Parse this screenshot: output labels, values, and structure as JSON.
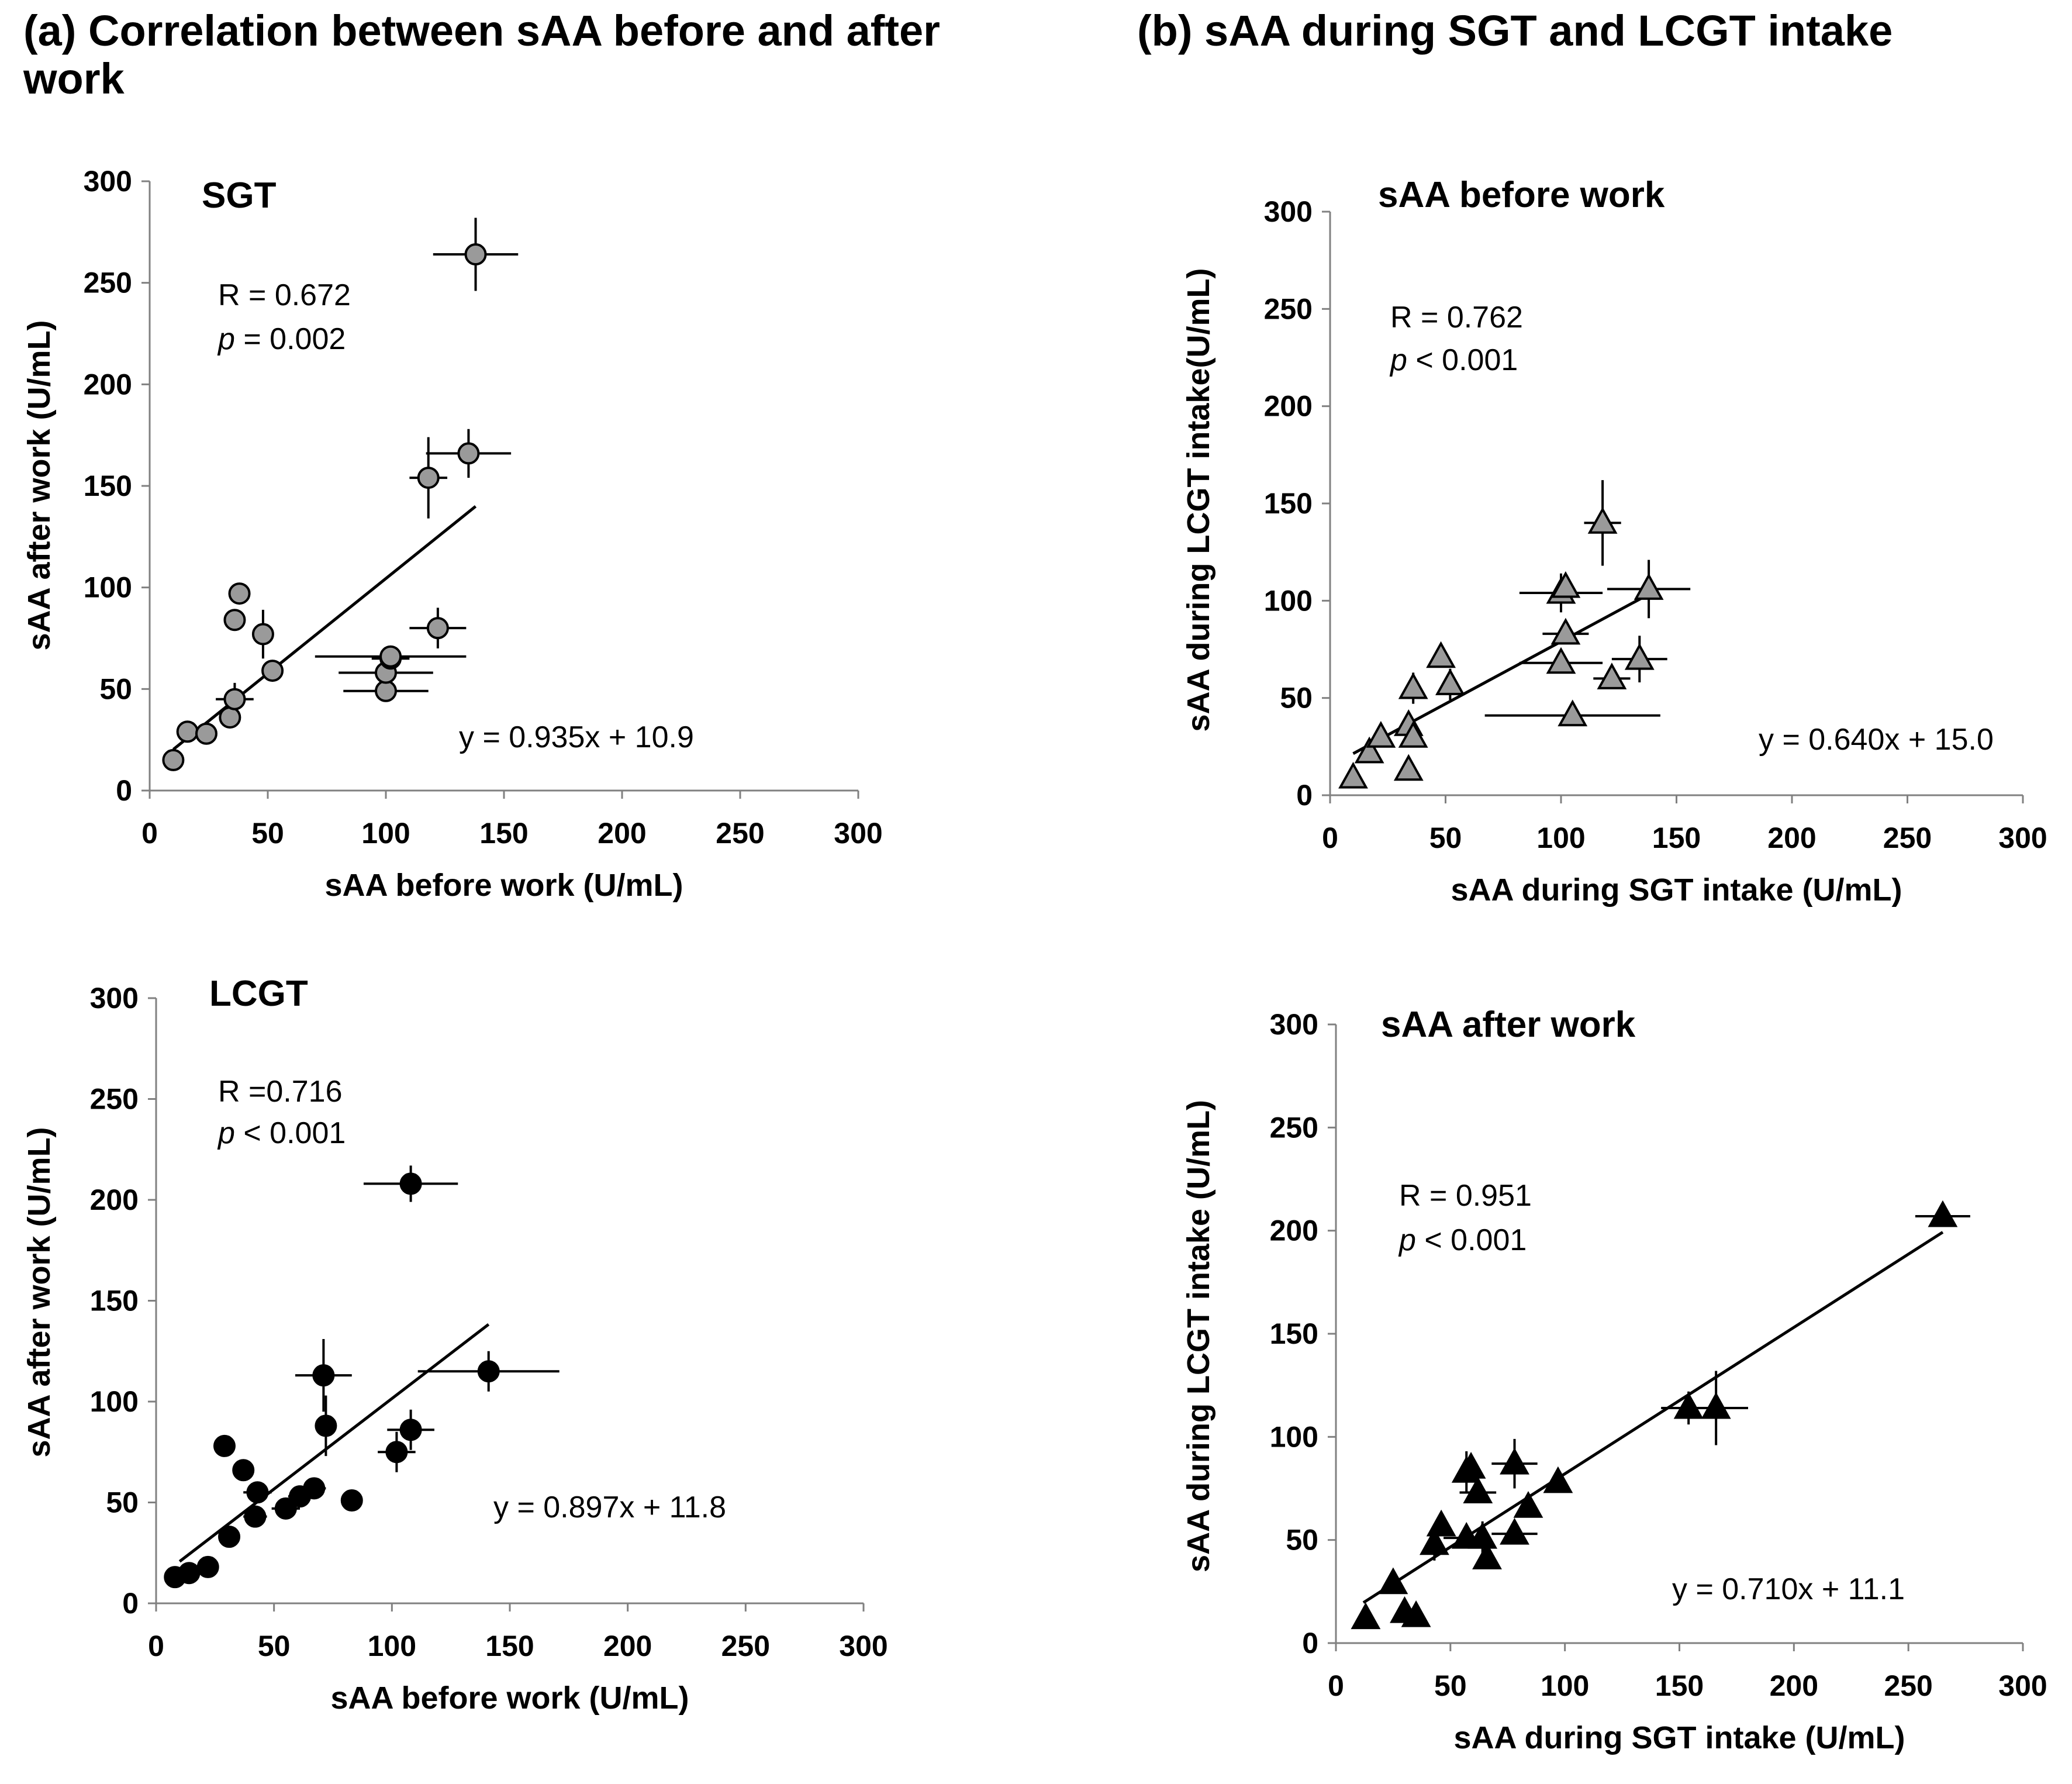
{
  "figure": {
    "title_a": "(a) Correlation between sAA before and after work",
    "title_b": "(b) sAA during SGT and LCGT intake"
  },
  "chart_data": [
    {
      "id": "sgt",
      "type": "scatter",
      "title": "SGT",
      "xlabel": "sAA before work (U/mL)",
      "ylabel": "sAA after work  (U/mL)",
      "xlim": [
        0,
        300
      ],
      "ylim": [
        0,
        300
      ],
      "xticks": [
        "0",
        "50",
        "100",
        "150",
        "200",
        "250",
        "300"
      ],
      "yticks": [
        "0",
        "50",
        "100",
        "150",
        "200",
        "250",
        "300"
      ],
      "marker": "circle",
      "marker_fill": "#9a9a9a",
      "r_label": "R = 0.672",
      "p_symbol": "p",
      "p_text": " = 0.002",
      "equation": "y = 0.935x + 10.9",
      "fit": {
        "slope": 0.935,
        "intercept": 10.9,
        "x_range": [
          10,
          138
        ]
      },
      "points": [
        {
          "x": 10,
          "y": 15
        },
        {
          "x": 16,
          "y": 29
        },
        {
          "x": 24,
          "y": 28
        },
        {
          "x": 34,
          "y": 36
        },
        {
          "x": 36,
          "y": 45,
          "xerr": 8,
          "yerr": 8
        },
        {
          "x": 36,
          "y": 84
        },
        {
          "x": 38,
          "y": 97
        },
        {
          "x": 48,
          "y": 77,
          "yerr": 12
        },
        {
          "x": 52,
          "y": 59,
          "yerr": 5
        },
        {
          "x": 100,
          "y": 49,
          "xerr": 18
        },
        {
          "x": 100,
          "y": 58,
          "xerr": 20
        },
        {
          "x": 102,
          "y": 65,
          "xerr": 8,
          "yerr": 4
        },
        {
          "x": 122,
          "y": 80,
          "xerr": 12,
          "yerr": 10
        },
        {
          "x": 118,
          "y": 154,
          "xerr": 8,
          "yerr": 20
        },
        {
          "x": 135,
          "y": 166,
          "xerr": 18,
          "yerr": 12
        },
        {
          "x": 138,
          "y": 264,
          "xerr": 18,
          "yerr": 18
        },
        {
          "x": 102,
          "y": 66,
          "xerr": 32
        }
      ]
    },
    {
      "id": "lcgt",
      "type": "scatter",
      "title": "LCGT",
      "xlabel": "sAA before work (U/mL)",
      "ylabel": "sAA after work  (U/mL)",
      "xlim": [
        0,
        300
      ],
      "ylim": [
        0,
        300
      ],
      "xticks": [
        "0",
        "50",
        "100",
        "150",
        "200",
        "250",
        "300"
      ],
      "yticks": [
        "0",
        "50",
        "100",
        "150",
        "200",
        "250",
        "300"
      ],
      "marker": "circle",
      "marker_fill": "#000000",
      "r_label": "R =0.716",
      "p_symbol": "p",
      "p_text": " < 0.001",
      "equation": "y = 0.897x + 11.8",
      "fit": {
        "slope": 0.897,
        "intercept": 11.8,
        "x_range": [
          10,
          141
        ]
      },
      "points": [
        {
          "x": 8,
          "y": 13
        },
        {
          "x": 14,
          "y": 15
        },
        {
          "x": 22,
          "y": 18
        },
        {
          "x": 29,
          "y": 78
        },
        {
          "x": 31,
          "y": 33
        },
        {
          "x": 37,
          "y": 66,
          "yerr": 5
        },
        {
          "x": 42,
          "y": 43,
          "xerr": 5
        },
        {
          "x": 43,
          "y": 55,
          "xerr": 6
        },
        {
          "x": 55,
          "y": 47,
          "xerr": 6
        },
        {
          "x": 61,
          "y": 53,
          "xerr": 5
        },
        {
          "x": 67,
          "y": 57,
          "xerr": 5
        },
        {
          "x": 71,
          "y": 113,
          "xerr": 12,
          "yerr": 18
        },
        {
          "x": 72,
          "y": 88,
          "yerr": 15
        },
        {
          "x": 83,
          "y": 51
        },
        {
          "x": 102,
          "y": 75,
          "xerr": 8,
          "yerr": 10
        },
        {
          "x": 108,
          "y": 86,
          "xerr": 10,
          "yerr": 10
        },
        {
          "x": 108,
          "y": 208,
          "xerr": 20,
          "yerr": 9
        },
        {
          "x": 141,
          "y": 115,
          "xerr": 30,
          "yerr": 10
        }
      ]
    },
    {
      "id": "before",
      "type": "scatter",
      "title": "sAA before work",
      "xlabel": "sAA during SGT intake (U/mL)",
      "ylabel": "sAA during LCGT intake(U/mL)",
      "xlim": [
        0,
        300
      ],
      "ylim": [
        0,
        300
      ],
      "xticks": [
        "0",
        "50",
        "100",
        "150",
        "200",
        "250",
        "300"
      ],
      "yticks": [
        "0",
        "50",
        "100",
        "150",
        "200",
        "250",
        "300"
      ],
      "marker": "triangle",
      "marker_fill": "#9a9a9a",
      "r_label": "R = 0.762",
      "p_symbol": "p",
      "p_text": " < 0.001",
      "equation": "y = 0.640x + 15.0",
      "fit": {
        "slope": 0.64,
        "intercept": 15.0,
        "x_range": [
          10,
          138
        ]
      },
      "points": [
        {
          "x": 10,
          "y": 9
        },
        {
          "x": 17,
          "y": 22
        },
        {
          "x": 22,
          "y": 30
        },
        {
          "x": 34,
          "y": 13
        },
        {
          "x": 34,
          "y": 36
        },
        {
          "x": 36,
          "y": 30
        },
        {
          "x": 36,
          "y": 55,
          "yerr": 8
        },
        {
          "x": 48,
          "y": 71,
          "yerr": 5
        },
        {
          "x": 52,
          "y": 57,
          "yerr": 8
        },
        {
          "x": 100,
          "y": 68,
          "xerr": 18,
          "yerr": 5
        },
        {
          "x": 100,
          "y": 104,
          "xerr": 18,
          "yerr": 10
        },
        {
          "x": 102,
          "y": 83,
          "xerr": 10,
          "yerr": 5
        },
        {
          "x": 102,
          "y": 107,
          "yerr": 5
        },
        {
          "x": 105,
          "y": 41,
          "xerr": 38
        },
        {
          "x": 118,
          "y": 140,
          "xerr": 8,
          "yerr": 22
        },
        {
          "x": 122,
          "y": 60,
          "xerr": 8
        },
        {
          "x": 134,
          "y": 70,
          "xerr": 12,
          "yerr": 12
        },
        {
          "x": 138,
          "y": 106,
          "xerr": 18,
          "yerr": 15
        }
      ]
    },
    {
      "id": "after",
      "type": "scatter",
      "title": "sAA after work",
      "xlabel": "sAA during SGT intake (U/mL)",
      "ylabel": "sAA during LCGT intake (U/mL)",
      "xlim": [
        0,
        300
      ],
      "ylim": [
        0,
        300
      ],
      "xticks": [
        "0",
        "50",
        "100",
        "150",
        "200",
        "250",
        "300"
      ],
      "yticks": [
        "0",
        "50",
        "100",
        "150",
        "200",
        "250",
        "300"
      ],
      "marker": "triangle",
      "marker_fill": "#000000",
      "r_label": "R = 0.951",
      "p_symbol": "p",
      "p_text": " < 0.001",
      "equation": "y = 0.710x + 11.1",
      "fit": {
        "slope": 0.71,
        "intercept": 11.1,
        "x_range": [
          12,
          265
        ]
      },
      "points": [
        {
          "x": 13,
          "y": 12
        },
        {
          "x": 25,
          "y": 29
        },
        {
          "x": 30,
          "y": 15
        },
        {
          "x": 35,
          "y": 13
        },
        {
          "x": 43,
          "y": 48,
          "yerr": 8
        },
        {
          "x": 46,
          "y": 57,
          "yerr": 5
        },
        {
          "x": 57,
          "y": 51,
          "xerr": 10
        },
        {
          "x": 57,
          "y": 83,
          "yerr": 10
        },
        {
          "x": 59,
          "y": 85,
          "yerr": 6
        },
        {
          "x": 62,
          "y": 73,
          "xerr": 8
        },
        {
          "x": 64,
          "y": 51,
          "yerr": 8
        },
        {
          "x": 66,
          "y": 41,
          "yerr": 5
        },
        {
          "x": 78,
          "y": 87,
          "xerr": 10,
          "yerr": 12
        },
        {
          "x": 78,
          "y": 53,
          "xerr": 10
        },
        {
          "x": 84,
          "y": 66,
          "yerr": 5
        },
        {
          "x": 97,
          "y": 78
        },
        {
          "x": 154,
          "y": 114,
          "xerr": 12,
          "yerr": 8
        },
        {
          "x": 166,
          "y": 114,
          "xerr": 14,
          "yerr": 18
        },
        {
          "x": 265,
          "y": 207,
          "xerr": 12,
          "yerr": 5
        }
      ]
    }
  ]
}
